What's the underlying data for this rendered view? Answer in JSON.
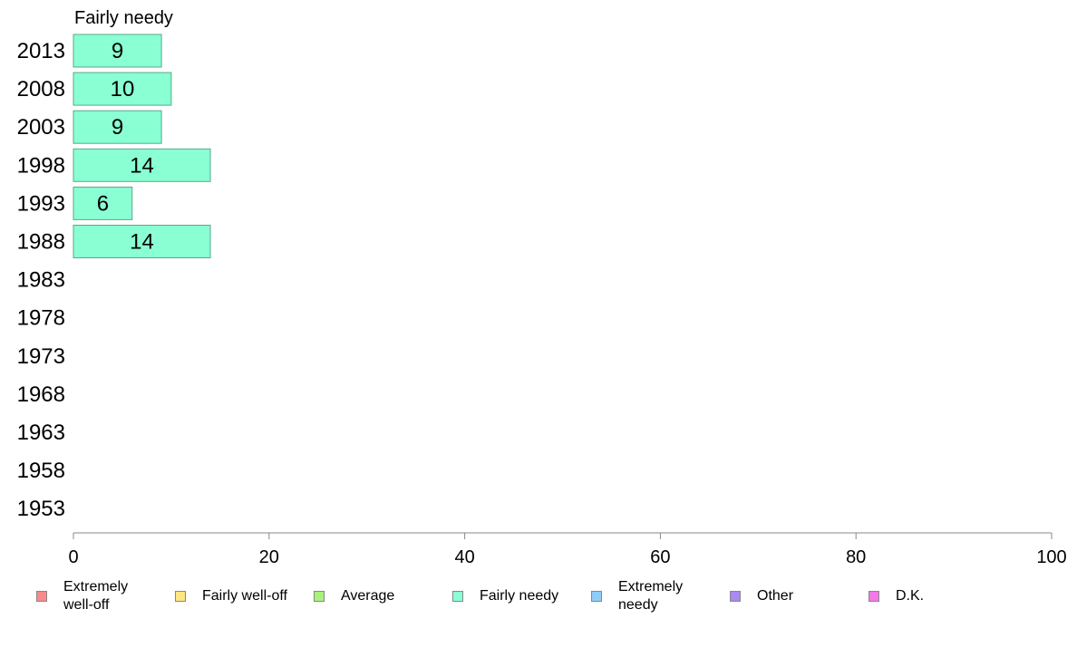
{
  "chart_data": {
    "type": "bar",
    "orientation": "horizontal",
    "title": "Fairly needy",
    "categories": [
      "2013",
      "2008",
      "2003",
      "1998",
      "1993",
      "1988",
      "1983",
      "1978",
      "1973",
      "1968",
      "1963",
      "1958",
      "1953"
    ],
    "series": [
      {
        "name": "Fairly needy",
        "color": "#8affd3",
        "values": [
          9,
          10,
          9,
          14,
          6,
          14,
          null,
          null,
          null,
          null,
          null,
          null,
          null
        ]
      }
    ],
    "xlim": [
      0,
      100
    ],
    "xticks": [
      0,
      20,
      40,
      60,
      80,
      100
    ],
    "grid": false,
    "legend_position": "bottom",
    "legend": [
      {
        "label": "Extremely\nwell-off",
        "color": "#f88a8a"
      },
      {
        "label": "Fairly well-off",
        "color": "#ffe680"
      },
      {
        "label": "Average",
        "color": "#a8f27a"
      },
      {
        "label": "Fairly needy",
        "color": "#8affd3"
      },
      {
        "label": "Extremely\nneedy",
        "color": "#8ecdf8"
      },
      {
        "label": "Other",
        "color": "#a98af0"
      },
      {
        "label": "D.K.",
        "color": "#f27ae8"
      }
    ]
  }
}
